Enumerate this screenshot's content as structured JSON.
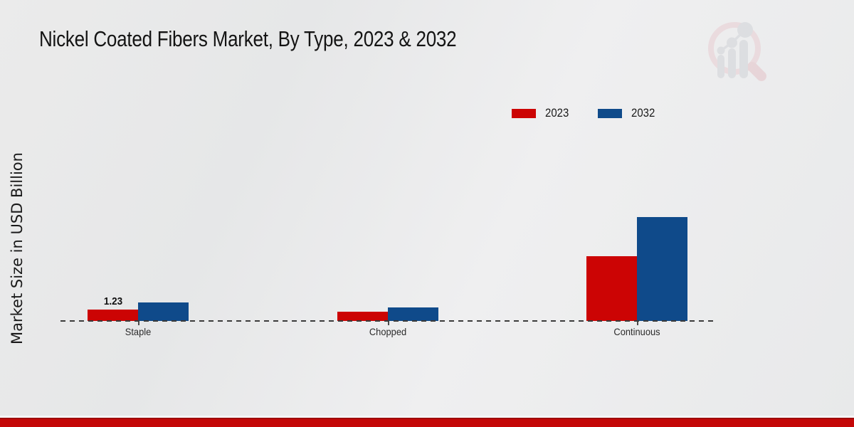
{
  "title": "Nickel Coated Fibers Market, By Type, 2023 & 2032",
  "y_axis_label": "Market Size in USD Billion",
  "legend": {
    "position": "top-right",
    "items": [
      {
        "label": "2023",
        "color": "#cc0404"
      },
      {
        "label": "2032",
        "color": "#0f4a8a"
      }
    ]
  },
  "annotation": {
    "value_label": "1.23"
  },
  "watermark": {
    "name": "market-research-future-logo"
  },
  "footer": {
    "band_color": "#c40707"
  },
  "chart_data": {
    "type": "bar",
    "categories": [
      "Staple",
      "Chopped",
      "Continuous"
    ],
    "series": [
      {
        "name": "2023",
        "color": "#cc0404",
        "values": [
          1.23,
          0.98,
          7.0
        ]
      },
      {
        "name": "2032",
        "color": "#0f4a8a",
        "values": [
          2.0,
          1.5,
          11.2
        ]
      }
    ],
    "title": "Nickel Coated Fibers Market, By Type, 2023 & 2032",
    "xlabel": "",
    "ylabel": "Market Size in USD Billion",
    "ylim": [
      0,
      12
    ],
    "grid": false,
    "baseline_style": "dashed",
    "legend_position": "top-right",
    "data_labels": [
      {
        "category": "Staple",
        "series": "2023",
        "text": "1.23"
      }
    ]
  }
}
